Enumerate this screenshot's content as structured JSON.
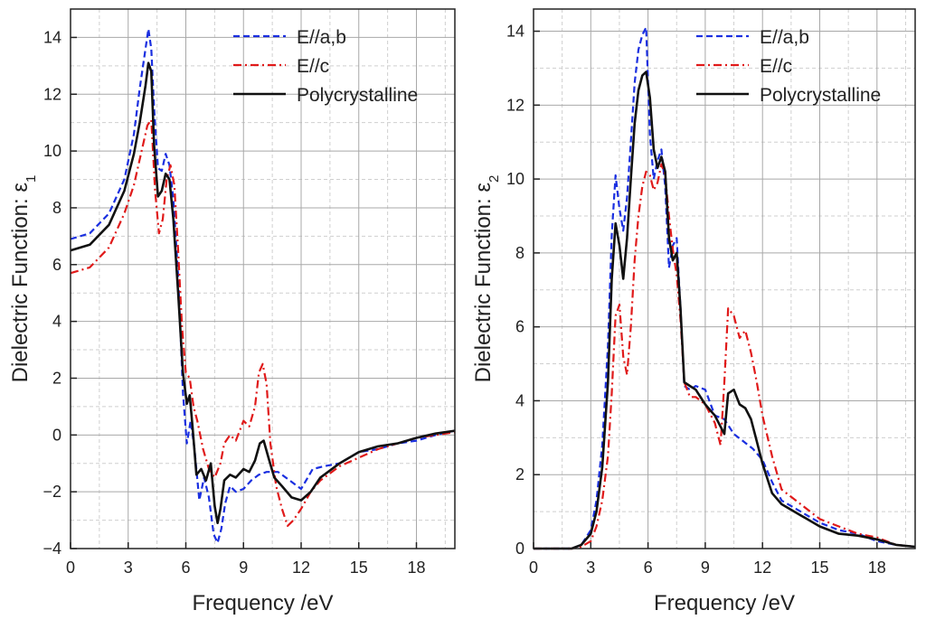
{
  "chart_data": [
    {
      "type": "line",
      "xlabel": "Frequency /eV",
      "ylabel": "Dielectric Function: ε",
      "ylabel_sub": "1",
      "xlim": [
        0,
        20
      ],
      "ylim": [
        -4,
        15
      ],
      "xticks": [
        0,
        3,
        6,
        9,
        12,
        15,
        18
      ],
      "yticks": [
        -4,
        -2,
        0,
        2,
        4,
        6,
        8,
        10,
        12,
        14
      ],
      "grid": true,
      "legend_position": "top-right",
      "series": [
        {
          "name": "E//a,b",
          "color": "#1a2fe0",
          "dash": "dashed",
          "x": [
            0,
            1,
            2,
            2.8,
            3.3,
            3.6,
            3.9,
            4.05,
            4.2,
            4.35,
            4.55,
            4.75,
            4.95,
            5.15,
            5.35,
            5.6,
            5.85,
            6.05,
            6.25,
            6.45,
            6.7,
            6.95,
            7.2,
            7.45,
            7.65,
            7.85,
            8.05,
            8.3,
            8.6,
            9.0,
            9.4,
            9.8,
            10.2,
            10.8,
            11.4,
            12.0,
            12.6,
            13.2,
            14,
            15,
            16,
            17,
            18,
            19,
            20
          ],
          "y": [
            6.9,
            7.1,
            7.8,
            9.0,
            10.6,
            12.2,
            13.6,
            14.3,
            13.6,
            11.5,
            9.4,
            9.3,
            9.9,
            9.5,
            8.3,
            5.6,
            1.5,
            -0.3,
            0.5,
            -0.5,
            -2.3,
            -1.5,
            -2.2,
            -3.5,
            -3.8,
            -3.3,
            -2.4,
            -1.8,
            -2.0,
            -1.9,
            -1.6,
            -1.4,
            -1.3,
            -1.3,
            -1.6,
            -1.9,
            -1.2,
            -1.1,
            -1.0,
            -0.6,
            -0.5,
            -0.3,
            -0.2,
            0.0,
            0.15
          ]
        },
        {
          "name": "E//c",
          "color": "#e01a1a",
          "dash": "dashdot",
          "x": [
            0,
            1,
            2,
            2.8,
            3.3,
            3.7,
            4.0,
            4.2,
            4.4,
            4.6,
            4.8,
            5.0,
            5.2,
            5.4,
            5.6,
            5.8,
            6.0,
            6.2,
            6.4,
            6.6,
            6.9,
            7.2,
            7.5,
            7.8,
            8.0,
            8.3,
            8.6,
            9.0,
            9.3,
            9.6,
            9.8,
            10.0,
            10.2,
            10.4,
            10.7,
            11.0,
            11.3,
            11.6,
            12.0,
            12.5,
            13.0,
            14.0,
            15.0,
            16.0,
            17.0,
            18.0,
            19.0,
            20.0
          ],
          "y": [
            5.7,
            5.9,
            6.6,
            7.8,
            8.8,
            10.0,
            10.9,
            11.1,
            8.6,
            7.1,
            7.6,
            9.0,
            9.5,
            8.8,
            6.5,
            3.8,
            2.2,
            2.0,
            1.0,
            0.5,
            -0.5,
            -1.2,
            -1.5,
            -1.0,
            -0.3,
            0.0,
            -0.2,
            0.5,
            0.3,
            1.0,
            2.2,
            2.5,
            1.8,
            -0.3,
            -1.8,
            -2.6,
            -3.2,
            -3.0,
            -2.6,
            -2.0,
            -1.6,
            -1.1,
            -0.8,
            -0.5,
            -0.3,
            -0.1,
            0.0,
            0.1
          ]
        },
        {
          "name": "Polycrystalline",
          "color": "#111111",
          "dash": "solid",
          "x": [
            0,
            1,
            2,
            2.8,
            3.3,
            3.6,
            3.9,
            4.05,
            4.2,
            4.35,
            4.55,
            4.75,
            4.95,
            5.15,
            5.35,
            5.6,
            5.85,
            6.05,
            6.2,
            6.35,
            6.55,
            6.8,
            7.05,
            7.3,
            7.5,
            7.65,
            7.8,
            8.0,
            8.3,
            8.6,
            9.0,
            9.3,
            9.6,
            9.85,
            10.05,
            10.3,
            10.6,
            11.0,
            11.5,
            12.0,
            12.5,
            13.0,
            14.0,
            15.0,
            16.0,
            17.0,
            18.0,
            19.0,
            20.0
          ],
          "y": [
            6.5,
            6.7,
            7.4,
            8.6,
            9.9,
            11.0,
            12.3,
            13.1,
            12.8,
            10.2,
            8.4,
            8.6,
            9.2,
            9.0,
            7.6,
            5.0,
            2.2,
            1.1,
            1.4,
            0.3,
            -1.4,
            -1.2,
            -1.6,
            -1.0,
            -2.5,
            -3.1,
            -2.6,
            -1.6,
            -1.4,
            -1.5,
            -1.2,
            -1.3,
            -0.9,
            -0.3,
            -0.2,
            -0.8,
            -1.5,
            -1.8,
            -2.2,
            -2.3,
            -2.0,
            -1.5,
            -1.0,
            -0.6,
            -0.4,
            -0.3,
            -0.1,
            0.05,
            0.15
          ]
        }
      ]
    },
    {
      "type": "line",
      "xlabel": "Frequency /eV",
      "ylabel": "Dielectric Function: ε",
      "ylabel_sub": "2",
      "xlim": [
        0,
        20
      ],
      "ylim": [
        0,
        14.6
      ],
      "xticks": [
        0,
        3,
        6,
        9,
        12,
        15,
        18
      ],
      "yticks": [
        0,
        2,
        4,
        6,
        8,
        10,
        12,
        14
      ],
      "grid": true,
      "legend_position": "top-right",
      "series": [
        {
          "name": "E//a,b",
          "color": "#1a2fe0",
          "dash": "dashed",
          "x": [
            0,
            1,
            2,
            2.5,
            3.0,
            3.3,
            3.6,
            3.9,
            4.1,
            4.3,
            4.5,
            4.7,
            4.9,
            5.1,
            5.3,
            5.5,
            5.7,
            5.9,
            6.1,
            6.3,
            6.5,
            6.7,
            6.9,
            7.1,
            7.3,
            7.5,
            7.7,
            7.9,
            8.2,
            8.5,
            9.0,
            9.5,
            10.0,
            10.5,
            11.0,
            11.5,
            12.0,
            12.5,
            13.0,
            14.0,
            15.0,
            16.0,
            17.0,
            18.0,
            19.0,
            20.0
          ],
          "y": [
            0.0,
            0.0,
            0.0,
            0.1,
            0.5,
            1.3,
            2.8,
            5.5,
            8.5,
            10.1,
            9.2,
            8.6,
            9.5,
            11.0,
            12.6,
            13.5,
            13.9,
            14.1,
            11.2,
            10.0,
            10.5,
            10.8,
            9.8,
            7.6,
            8.2,
            8.4,
            6.5,
            4.4,
            4.3,
            4.4,
            4.3,
            3.6,
            3.5,
            3.1,
            2.9,
            2.7,
            2.4,
            1.8,
            1.3,
            1.0,
            0.7,
            0.5,
            0.4,
            0.2,
            0.1,
            0.05
          ]
        },
        {
          "name": "E//c",
          "color": "#e01a1a",
          "dash": "dashdot",
          "x": [
            0,
            1,
            2,
            2.5,
            3.0,
            3.3,
            3.6,
            3.9,
            4.1,
            4.3,
            4.5,
            4.7,
            4.9,
            5.1,
            5.3,
            5.5,
            5.7,
            5.9,
            6.1,
            6.3,
            6.5,
            6.7,
            6.9,
            7.1,
            7.3,
            7.5,
            7.7,
            7.9,
            8.2,
            8.5,
            9.0,
            9.5,
            9.8,
            10.0,
            10.2,
            10.5,
            10.8,
            11.1,
            11.4,
            11.7,
            12.0,
            12.5,
            13.0,
            14.0,
            15.0,
            16.0,
            17.0,
            18.0,
            19.0,
            20.0
          ],
          "y": [
            0.0,
            0.0,
            0.0,
            0.05,
            0.2,
            0.6,
            1.3,
            2.5,
            4.2,
            6.3,
            6.6,
            5.2,
            4.7,
            6.0,
            7.8,
            9.0,
            9.8,
            10.2,
            10.1,
            9.7,
            9.9,
            10.4,
            10.1,
            9.0,
            8.1,
            7.4,
            6.2,
            4.5,
            4.1,
            4.1,
            3.9,
            3.4,
            2.8,
            4.5,
            6.5,
            6.3,
            5.7,
            5.9,
            5.3,
            4.5,
            3.6,
            2.5,
            1.6,
            1.2,
            0.8,
            0.6,
            0.4,
            0.3,
            0.1,
            0.05
          ]
        },
        {
          "name": "Polycrystalline",
          "color": "#111111",
          "dash": "solid",
          "x": [
            0,
            1,
            2,
            2.5,
            3.0,
            3.3,
            3.6,
            3.9,
            4.1,
            4.3,
            4.5,
            4.7,
            4.9,
            5.1,
            5.3,
            5.5,
            5.7,
            5.9,
            6.1,
            6.3,
            6.5,
            6.7,
            6.9,
            7.1,
            7.3,
            7.5,
            7.7,
            7.9,
            8.2,
            8.5,
            9.0,
            9.5,
            10.0,
            10.2,
            10.5,
            10.8,
            11.1,
            11.4,
            11.7,
            12.0,
            12.5,
            13.0,
            14.0,
            15.0,
            16.0,
            17.0,
            18.0,
            19.0,
            20.0
          ],
          "y": [
            0.0,
            0.0,
            0.0,
            0.1,
            0.4,
            1.0,
            2.2,
            4.5,
            7.3,
            8.8,
            8.2,
            7.3,
            8.4,
            10.0,
            11.5,
            12.4,
            12.8,
            12.9,
            12.2,
            10.8,
            10.3,
            10.6,
            10.2,
            8.4,
            7.8,
            8.0,
            6.5,
            4.5,
            4.4,
            4.3,
            3.9,
            3.6,
            3.1,
            4.2,
            4.3,
            3.9,
            3.8,
            3.5,
            2.9,
            2.3,
            1.5,
            1.2,
            0.9,
            0.6,
            0.4,
            0.35,
            0.25,
            0.1,
            0.05
          ]
        }
      ]
    }
  ]
}
